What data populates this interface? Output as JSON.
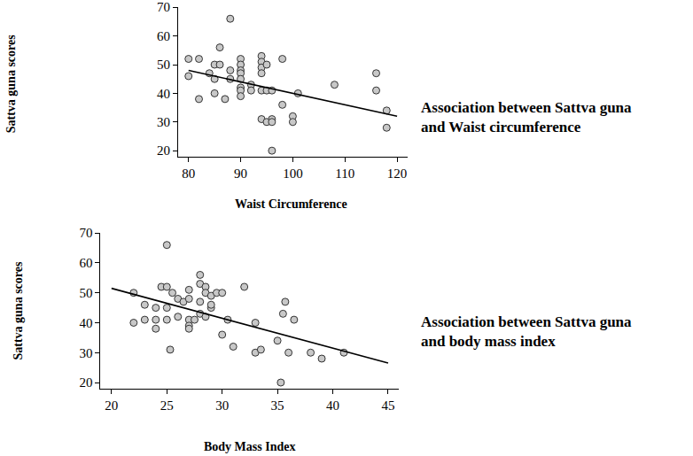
{
  "chart_data": [
    {
      "type": "scatter",
      "annotation": "Association between Sattva guna\nand Waist circumference",
      "x_label": "Waist Circumference",
      "y_label": "Sattva guna scores",
      "xlim": [
        78,
        122
      ],
      "xticks": [
        80,
        90,
        100,
        110,
        120
      ],
      "ylim": [
        18,
        70
      ],
      "yticks": [
        20,
        30,
        40,
        50,
        60,
        70
      ],
      "grid": false,
      "series": [
        {
          "type": "scatter",
          "marker": "circle",
          "color": "#c8c8c8",
          "x": [
            80,
            80,
            82,
            82,
            84,
            85,
            85,
            85,
            86,
            86,
            87,
            88,
            88,
            88,
            90,
            90,
            90,
            90,
            90,
            90,
            90,
            90,
            92,
            92,
            94,
            94,
            94,
            94,
            94,
            94,
            95,
            95,
            95,
            96,
            96,
            96,
            96,
            98,
            98,
            100,
            100,
            101,
            108,
            116,
            116,
            118,
            118
          ],
          "values": [
            46,
            52,
            52,
            38,
            47,
            50,
            45,
            40,
            56,
            50,
            38,
            66,
            48,
            45,
            52,
            50,
            48,
            47,
            45,
            42,
            41,
            39,
            43,
            41,
            53,
            51,
            49,
            47,
            41,
            31,
            50,
            41,
            30,
            41,
            31,
            30,
            20,
            52,
            36,
            32,
            30,
            40,
            43,
            47,
            41,
            34,
            28
          ]
        },
        {
          "type": "line",
          "line_style": "solid",
          "color": "#000000",
          "x": [
            80,
            120
          ],
          "values": [
            48,
            32
          ]
        }
      ]
    },
    {
      "type": "scatter",
      "annotation": "Association between Sattva guna\nand body mass index",
      "x_label": "Body Mass Index",
      "y_label": "Sattva guna scores",
      "xlim": [
        19,
        46
      ],
      "xticks": [
        20,
        25,
        30,
        35,
        40,
        45
      ],
      "ylim": [
        18,
        70
      ],
      "yticks": [
        20,
        30,
        40,
        50,
        60,
        70
      ],
      "grid": false,
      "series": [
        {
          "type": "scatter",
          "marker": "circle",
          "color": "#c8c8c8",
          "x": [
            22,
            22,
            23,
            23,
            24,
            24,
            24,
            24.5,
            25,
            25,
            25,
            25,
            25.3,
            25.5,
            26,
            26,
            26.5,
            27,
            27,
            27,
            27,
            27,
            27.5,
            28,
            28,
            28,
            28,
            28.5,
            28.5,
            28.5,
            29,
            29,
            29,
            29.5,
            30,
            30,
            30.5,
            31,
            32,
            33,
            33,
            33.5,
            35,
            35.3,
            35.5,
            35.7,
            36,
            36.5,
            38,
            39,
            41
          ],
          "values": [
            50,
            40,
            46,
            41,
            45,
            41,
            38,
            52,
            52,
            45,
            66,
            41,
            31,
            50,
            48,
            42,
            47,
            51,
            48,
            41,
            39,
            38,
            41,
            56,
            53,
            47,
            43,
            52,
            50,
            42,
            49,
            45,
            46,
            50,
            50,
            36,
            41,
            32,
            52,
            40,
            30,
            31,
            34,
            20,
            43,
            47,
            30,
            41,
            30,
            28,
            30
          ]
        },
        {
          "type": "line",
          "line_style": "solid",
          "color": "#000000",
          "x": [
            20,
            45
          ],
          "values": [
            51.5,
            26.5
          ]
        }
      ]
    }
  ]
}
